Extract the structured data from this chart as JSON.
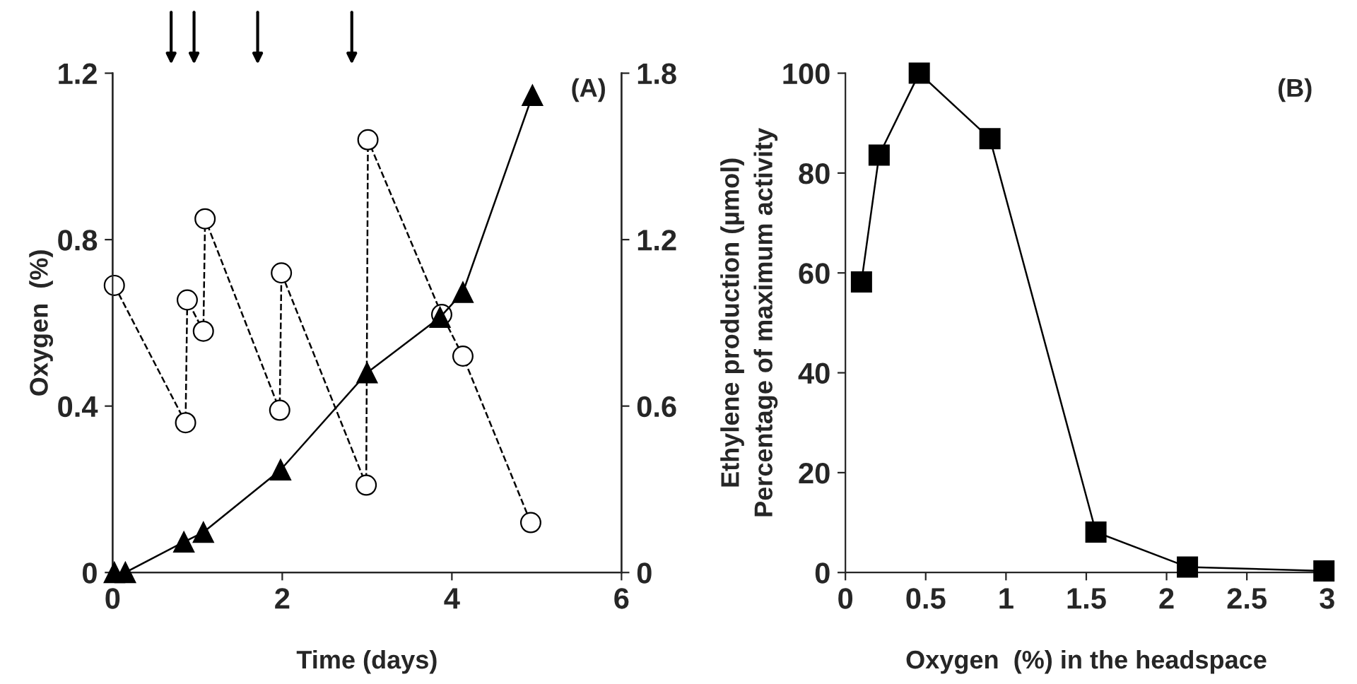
{
  "chart_data": [
    {
      "type": "line",
      "xlabel": "Time (days)",
      "ylabel": "Oxygen  (%)",
      "y2label": "Ethylene production (µmol)",
      "annotations": [
        "(A)"
      ],
      "xlim": [
        0,
        6
      ],
      "xticks": [
        0,
        2,
        4,
        6
      ],
      "ylim": [
        0,
        1.2
      ],
      "yticks": [
        0,
        0.4,
        0.8,
        1.2
      ],
      "y2lim": [
        0,
        1.8
      ],
      "y2ticks": [
        0,
        0.6,
        1.2,
        1.8
      ],
      "grid": false,
      "legend": false,
      "series": [
        {
          "color": "#000000",
          "marker": "circle",
          "line_style": "dashed",
          "x": [
            0.02,
            0.86,
            0.88,
            1.07,
            1.09,
            1.97,
            1.99,
            2.99,
            3.01,
            3.88,
            4.13,
            4.93
          ],
          "values": [
            0.69,
            0.36,
            0.655,
            0.58,
            0.85,
            0.39,
            0.72,
            0.21,
            1.04,
            0.62,
            0.52,
            0.12
          ]
        },
        {
          "color": "#000000",
          "marker": "triangle",
          "line_style": "solid",
          "axis": "y2",
          "x": [
            0.02,
            0.15,
            0.84,
            1.07,
            1.98,
            3.0,
            3.86,
            4.13,
            4.95
          ],
          "values": [
            0,
            0,
            0.11,
            0.145,
            0.37,
            0.72,
            0.92,
            1.01,
            1.72
          ]
        }
      ]
    },
    {
      "type": "line",
      "xlabel": "Oxygen  (%) in the headspace",
      "ylabel": "Percentage of maximum activity",
      "annotations": [
        "(B)"
      ],
      "xlim": [
        0,
        3
      ],
      "xticks": [
        0,
        0.5,
        1,
        1.5,
        2,
        2.5,
        3
      ],
      "ylim": [
        0,
        100
      ],
      "yticks": [
        0,
        20,
        40,
        60,
        80,
        100
      ],
      "grid": false,
      "legend": false,
      "series": [
        {
          "color": "#000000",
          "marker": "square",
          "line_style": "solid",
          "x": [
            0.1,
            0.21,
            0.46,
            0.9,
            1.56,
            2.13,
            2.98
          ],
          "values": [
            58.2,
            83.6,
            100,
            86.9,
            8.1,
            1.1,
            0.3
          ]
        }
      ]
    }
  ]
}
